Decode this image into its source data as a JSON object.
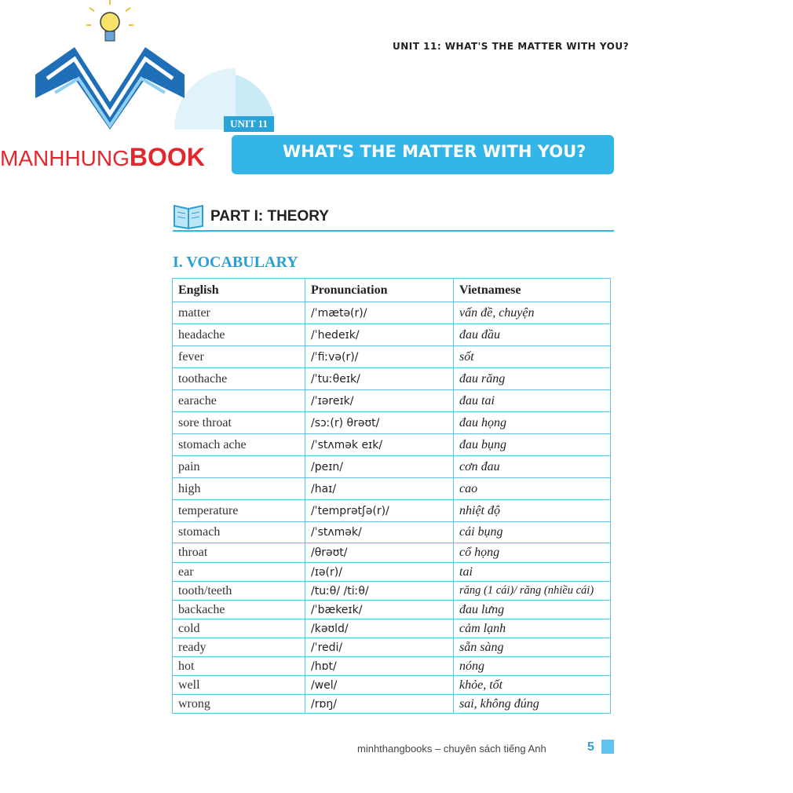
{
  "logo": {
    "brand_left": "MANHHUNG",
    "brand_right": "BOOK"
  },
  "header": {
    "running_title": "UNIT 11: WHAT'S THE MATTER WITH YOU?",
    "unit_tag": "UNIT 11",
    "banner_title": "WHAT'S THE MATTER WITH YOU?"
  },
  "section": {
    "part_title": "PART I: THEORY",
    "subsection_title": "I. VOCABULARY"
  },
  "table": {
    "columns": [
      "English",
      "Pronunciation",
      "Vietnamese"
    ],
    "rows": [
      [
        "matter",
        "/ˈmætə(r)/",
        "vấn đề, chuyện"
      ],
      [
        "headache",
        "/ˈhedeɪk/",
        "đau đầu"
      ],
      [
        "fever",
        "/ˈfiːvə(r)/",
        "sốt"
      ],
      [
        "toothache",
        "/ˈtuːθeɪk/",
        "đau răng"
      ],
      [
        "earache",
        "/ˈɪəreɪk/",
        "đau tai"
      ],
      [
        "sore throat",
        "/sɔː(r) θrəʊt/",
        "đau họng"
      ],
      [
        "stomach ache",
        "/ˈstʌmək eɪk/",
        "đau bụng"
      ],
      [
        "pain",
        "/peɪn/",
        "cơn đau"
      ],
      [
        "high",
        "/haɪ/",
        "cao"
      ],
      [
        "temperature",
        "/ˈtemprətʃə(r)/",
        "nhiệt độ"
      ],
      [
        "stomach",
        "/ˈstʌmək/",
        "cái bụng"
      ],
      [
        "throat",
        "/θrəʊt/",
        "cổ họng"
      ],
      [
        "ear",
        "/ɪə(r)/",
        "tai"
      ],
      [
        "tooth/teeth",
        "/tuːθ/ /tiːθ/",
        "răng (1 cái)/ răng (nhiều cái)"
      ],
      [
        "backache",
        "/ˈbækeɪk/",
        "đau lưng"
      ],
      [
        "cold",
        "/kəʊld/",
        "cảm lạnh"
      ],
      [
        "ready",
        "/ˈredi/",
        "sẵn sàng"
      ],
      [
        "hot",
        "/hɒt/",
        "nóng"
      ],
      [
        "well",
        "/wel/",
        "khỏe, tốt"
      ],
      [
        "wrong",
        "/rɒŋ/",
        "sai, không đúng"
      ]
    ]
  },
  "footer": {
    "text": "minhthangbooks – chuyên sách tiếng Anh",
    "page_number": "5"
  }
}
